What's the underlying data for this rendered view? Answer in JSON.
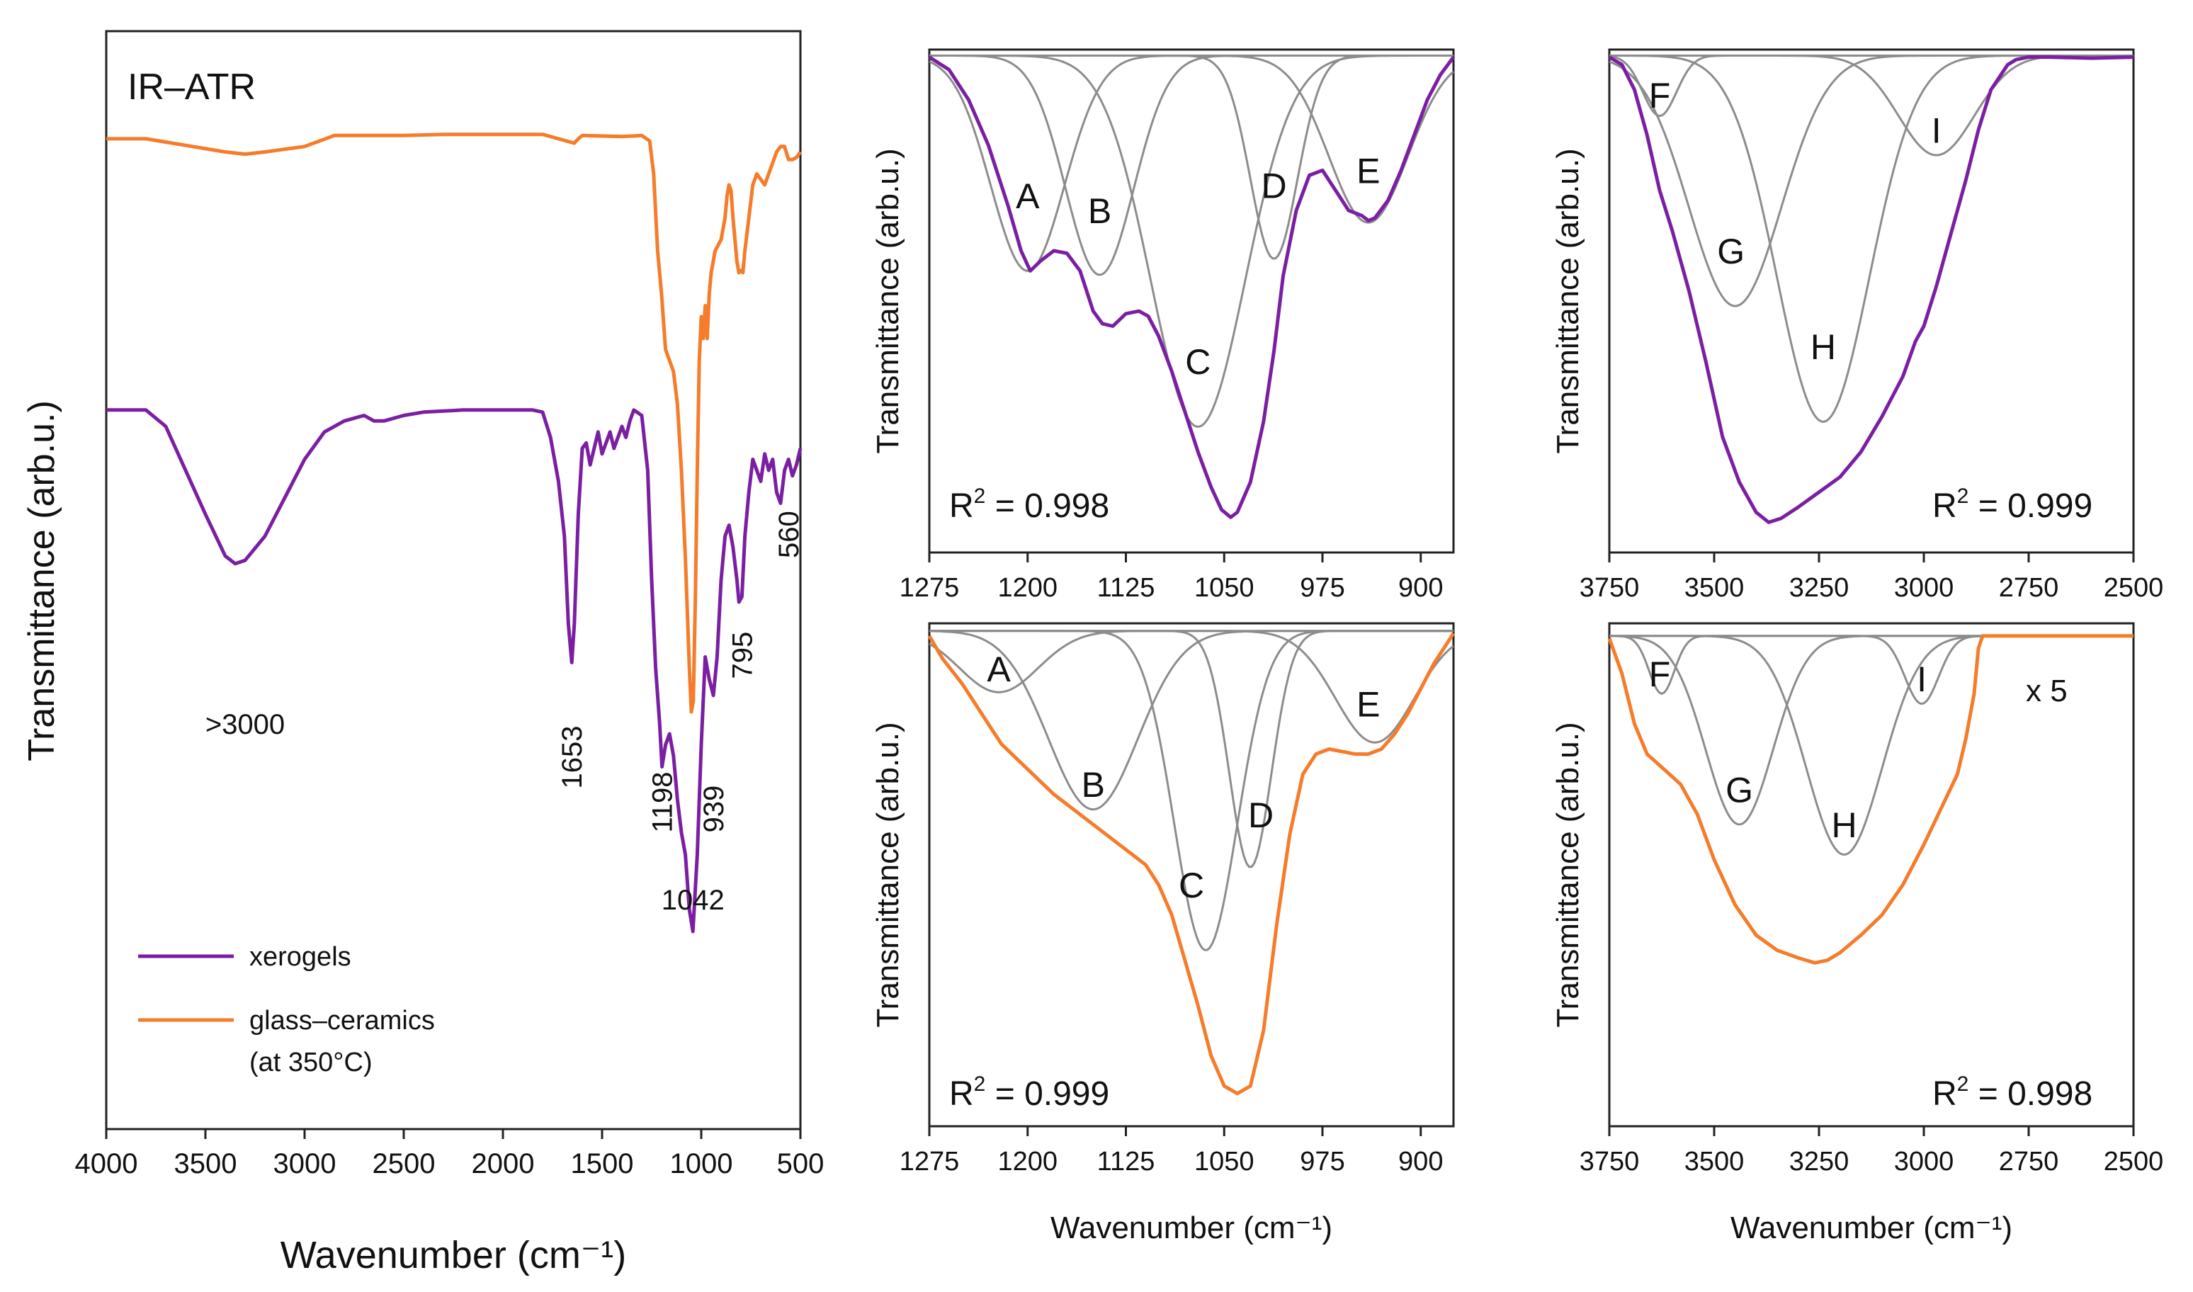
{
  "figure": {
    "colors": {
      "xerogels": "#7b1fa2",
      "glass_ceramics": "#f57c2a",
      "component": "#8c8c8c"
    }
  },
  "chart_data": [
    {
      "id": "survey",
      "type": "line",
      "title": "IR–ATR",
      "xlabel": "Wavenumber (cm⁻¹)",
      "ylabel": "Transmittance (arb.u.)",
      "xlim": [
        4000,
        500
      ],
      "ylim": [
        0,
        1
      ],
      "xticks": [
        "4000",
        "3500",
        "3000",
        "2500",
        "2000",
        "1500",
        "1000",
        "500"
      ],
      "legend": {
        "position": "bottom-left",
        "entries": [
          {
            "name": "xerogels",
            "lines": [
              "xerogels"
            ]
          },
          {
            "name": "glass_ceramics",
            "lines": [
              "glass–ceramics",
              "(at 350°C)"
            ]
          }
        ]
      },
      "annotations": [
        {
          "text": ">3000",
          "x": 3300,
          "y": 0.36,
          "rotate": 0
        },
        {
          "text": "1653",
          "x": 1653,
          "y": 0.31,
          "rotate": -90
        },
        {
          "text": "1198",
          "x": 1198,
          "y": 0.27,
          "rotate": -90
        },
        {
          "text": "939",
          "x": 939,
          "y": 0.27,
          "rotate": -90
        },
        {
          "text": "795",
          "x": 795,
          "y": 0.41,
          "rotate": -90
        },
        {
          "text": "560",
          "x": 560,
          "y": 0.52,
          "rotate": -90
        },
        {
          "text": "1042",
          "x": 1042,
          "y": 0.2,
          "rotate": 0
        }
      ],
      "series": [
        {
          "name": "xerogels",
          "x": [
            4000,
            3800,
            3700,
            3600,
            3500,
            3400,
            3350,
            3300,
            3200,
            3100,
            3000,
            2900,
            2800,
            2700,
            2650,
            2600,
            2500,
            2400,
            2200,
            2000,
            1850,
            1800,
            1760,
            1720,
            1690,
            1670,
            1653,
            1640,
            1620,
            1600,
            1580,
            1560,
            1540,
            1520,
            1500,
            1480,
            1460,
            1440,
            1420,
            1400,
            1380,
            1360,
            1340,
            1300,
            1270,
            1250,
            1230,
            1210,
            1198,
            1180,
            1160,
            1140,
            1120,
            1100,
            1080,
            1060,
            1042,
            1020,
            1000,
            980,
            960,
            939,
            920,
            900,
            880,
            860,
            840,
            820,
            810,
            795,
            780,
            760,
            740,
            720,
            700,
            680,
            660,
            640,
            620,
            600,
            580,
            560,
            540,
            520,
            500
          ],
          "y": [
            0.655,
            0.655,
            0.64,
            0.6,
            0.56,
            0.522,
            0.515,
            0.518,
            0.54,
            0.575,
            0.61,
            0.635,
            0.645,
            0.65,
            0.645,
            0.645,
            0.65,
            0.653,
            0.655,
            0.655,
            0.655,
            0.653,
            0.63,
            0.59,
            0.54,
            0.46,
            0.425,
            0.46,
            0.56,
            0.62,
            0.625,
            0.605,
            0.62,
            0.635,
            0.615,
            0.625,
            0.635,
            0.62,
            0.63,
            0.64,
            0.63,
            0.645,
            0.655,
            0.65,
            0.6,
            0.5,
            0.42,
            0.37,
            0.33,
            0.35,
            0.36,
            0.34,
            0.3,
            0.27,
            0.25,
            0.2,
            0.18,
            0.25,
            0.35,
            0.43,
            0.41,
            0.395,
            0.43,
            0.5,
            0.54,
            0.55,
            0.53,
            0.5,
            0.48,
            0.485,
            0.54,
            0.58,
            0.61,
            0.6,
            0.59,
            0.615,
            0.6,
            0.61,
            0.58,
            0.57,
            0.6,
            0.61,
            0.595,
            0.605,
            0.62
          ]
        },
        {
          "name": "glass_ceramics",
          "x": [
            4000,
            3800,
            3600,
            3400,
            3300,
            3200,
            3000,
            2850,
            2700,
            2500,
            2300,
            2000,
            1800,
            1640,
            1620,
            1600,
            1400,
            1300,
            1260,
            1240,
            1220,
            1200,
            1180,
            1160,
            1140,
            1120,
            1100,
            1080,
            1060,
            1050,
            1040,
            1030,
            1020,
            1010,
            1000,
            990,
            980,
            970,
            960,
            950,
            940,
            930,
            900,
            880,
            870,
            860,
            850,
            840,
            830,
            820,
            810,
            800,
            790,
            780,
            760,
            740,
            720,
            700,
            680,
            660,
            640,
            620,
            600,
            580,
            560,
            540,
            520,
            500
          ],
          "y": [
            0.902,
            0.902,
            0.896,
            0.89,
            0.888,
            0.89,
            0.895,
            0.905,
            0.905,
            0.905,
            0.906,
            0.906,
            0.906,
            0.898,
            0.902,
            0.905,
            0.904,
            0.905,
            0.9,
            0.87,
            0.8,
            0.76,
            0.71,
            0.7,
            0.69,
            0.66,
            0.6,
            0.52,
            0.42,
            0.38,
            0.39,
            0.48,
            0.6,
            0.7,
            0.74,
            0.72,
            0.75,
            0.72,
            0.76,
            0.78,
            0.79,
            0.8,
            0.81,
            0.83,
            0.85,
            0.86,
            0.855,
            0.83,
            0.81,
            0.79,
            0.78,
            0.782,
            0.78,
            0.8,
            0.83,
            0.86,
            0.87,
            0.865,
            0.86,
            0.87,
            0.88,
            0.89,
            0.895,
            0.895,
            0.883,
            0.883,
            0.885,
            0.89
          ]
        }
      ]
    },
    {
      "id": "fit-1",
      "type": "line",
      "xlabel": "",
      "ylabel": "Transmittance (arb.u.)",
      "xlim": [
        1275,
        875
      ],
      "ylim": [
        0,
        1
      ],
      "xticks": [
        "1275",
        "1200",
        "1125",
        "1050",
        "975",
        "900"
      ],
      "r2_label": "R",
      "r2_exp": "2",
      "r2_value": " = 0.998",
      "trace_color": "#7b1fa2",
      "baseline": 0.988,
      "components": [
        {
          "label": "A",
          "center": 1200,
          "depth": 0.428,
          "width": 28,
          "lx": 1200,
          "ly": 0.71
        },
        {
          "label": "B",
          "center": 1145,
          "depth": 0.436,
          "width": 26,
          "lx": 1145,
          "ly": 0.68
        },
        {
          "label": "C",
          "center": 1070,
          "depth": 0.738,
          "width": 36,
          "lx": 1070,
          "ly": 0.38
        },
        {
          "label": "D",
          "center": 1012,
          "depth": 0.404,
          "width": 18,
          "lx": 1012,
          "ly": 0.73
        },
        {
          "label": "E",
          "center": 940,
          "depth": 0.332,
          "width": 30,
          "lx": 940,
          "ly": 0.76
        }
      ],
      "trace": {
        "x": [
          1275,
          1260,
          1245,
          1230,
          1215,
          1205,
          1198,
          1190,
          1180,
          1170,
          1160,
          1150,
          1143,
          1135,
          1125,
          1115,
          1108,
          1100,
          1090,
          1080,
          1070,
          1060,
          1052,
          1045,
          1040,
          1030,
          1020,
          1012,
          1005,
          995,
          985,
          975,
          965,
          955,
          945,
          940,
          935,
          925,
          915,
          905,
          895,
          885,
          875
        ],
        "y": [
          0.985,
          0.96,
          0.9,
          0.81,
          0.69,
          0.6,
          0.56,
          0.58,
          0.6,
          0.595,
          0.56,
          0.48,
          0.455,
          0.45,
          0.475,
          0.48,
          0.47,
          0.43,
          0.36,
          0.28,
          0.2,
          0.13,
          0.085,
          0.07,
          0.08,
          0.14,
          0.26,
          0.4,
          0.55,
          0.68,
          0.75,
          0.76,
          0.72,
          0.68,
          0.67,
          0.66,
          0.665,
          0.7,
          0.76,
          0.83,
          0.9,
          0.95,
          0.985
        ]
      }
    },
    {
      "id": "fit-2",
      "type": "line",
      "xlabel": "",
      "ylabel": "Transmittance (arb.u.)",
      "xlim": [
        3750,
        2500
      ],
      "ylim": [
        0,
        1
      ],
      "xticks": [
        "3750",
        "3500",
        "3250",
        "3000",
        "2750",
        "2500"
      ],
      "r2_label": "R",
      "r2_exp": "2",
      "r2_value": " = 0.999",
      "trace_color": "#7b1fa2",
      "baseline": 0.988,
      "components": [
        {
          "label": "F",
          "center": 3630,
          "depth": 0.12,
          "width": 40,
          "lx": 3630,
          "ly": 0.91
        },
        {
          "label": "G",
          "center": 3450,
          "depth": 0.498,
          "width": 110,
          "lx": 3460,
          "ly": 0.6
        },
        {
          "label": "H",
          "center": 3240,
          "depth": 0.728,
          "width": 110,
          "lx": 3240,
          "ly": 0.41
        },
        {
          "label": "I",
          "center": 2970,
          "depth": 0.198,
          "width": 90,
          "lx": 2970,
          "ly": 0.84
        }
      ],
      "trace": {
        "x": [
          3750,
          3720,
          3690,
          3660,
          3630,
          3600,
          3560,
          3520,
          3480,
          3440,
          3400,
          3370,
          3340,
          3300,
          3250,
          3200,
          3150,
          3100,
          3050,
          3020,
          3000,
          2970,
          2940,
          2900,
          2870,
          2840,
          2800,
          2780,
          2750,
          2700,
          2600,
          2500
        ],
        "y": [
          0.985,
          0.97,
          0.92,
          0.83,
          0.72,
          0.64,
          0.52,
          0.38,
          0.23,
          0.14,
          0.08,
          0.06,
          0.068,
          0.09,
          0.12,
          0.15,
          0.2,
          0.27,
          0.35,
          0.42,
          0.45,
          0.53,
          0.62,
          0.74,
          0.84,
          0.92,
          0.97,
          0.98,
          0.985,
          0.985,
          0.983,
          0.985
        ]
      }
    },
    {
      "id": "fit-3",
      "type": "line",
      "xlabel": "Wavenumber (cm⁻¹)",
      "ylabel": "Transmittance (arb.u.)",
      "xlim": [
        1275,
        875
      ],
      "ylim": [
        0,
        1
      ],
      "xticks": [
        "1275",
        "1200",
        "1125",
        "1050",
        "975",
        "900"
      ],
      "r2_label": "R",
      "r2_exp": "2",
      "r2_value": " = 0.999",
      "trace_color": "#f57c2a",
      "baseline": 0.985,
      "components": [
        {
          "label": "A",
          "center": 1222,
          "depth": 0.122,
          "width": 30,
          "lx": 1222,
          "ly": 0.91
        },
        {
          "label": "B",
          "center": 1150,
          "depth": 0.355,
          "width": 34,
          "lx": 1150,
          "ly": 0.68
        },
        {
          "label": "C",
          "center": 1064,
          "depth": 0.635,
          "width": 24,
          "lx": 1075,
          "ly": 0.48
        },
        {
          "label": "D",
          "center": 1030,
          "depth": 0.47,
          "width": 16,
          "lx": 1022,
          "ly": 0.62
        },
        {
          "label": "E",
          "center": 935,
          "depth": 0.222,
          "width": 30,
          "lx": 940,
          "ly": 0.84
        }
      ],
      "trace": {
        "x": [
          1275,
          1265,
          1250,
          1235,
          1220,
          1200,
          1180,
          1160,
          1140,
          1120,
          1110,
          1100,
          1090,
          1080,
          1070,
          1060,
          1050,
          1040,
          1030,
          1020,
          1010,
          1000,
          990,
          980,
          970,
          960,
          950,
          940,
          930,
          920,
          910,
          900,
          890,
          880,
          875
        ],
        "y": [
          0.975,
          0.93,
          0.88,
          0.82,
          0.76,
          0.71,
          0.66,
          0.62,
          0.58,
          0.54,
          0.52,
          0.48,
          0.42,
          0.33,
          0.24,
          0.14,
          0.08,
          0.065,
          0.08,
          0.19,
          0.4,
          0.58,
          0.7,
          0.74,
          0.75,
          0.745,
          0.74,
          0.74,
          0.75,
          0.78,
          0.82,
          0.87,
          0.92,
          0.96,
          0.98
        ]
      }
    },
    {
      "id": "fit-4",
      "type": "line",
      "xlabel": "Wavenumber (cm⁻¹)",
      "ylabel": "Transmittance (arb.u.)",
      "xlim": [
        3750,
        2500
      ],
      "ylim": [
        0,
        1
      ],
      "xticks": [
        "3750",
        "3500",
        "3250",
        "3000",
        "2750",
        "2500"
      ],
      "r2_label": "R",
      "r2_exp": "2",
      "r2_value": " = 0.998",
      "multiplier": "x 5",
      "trace_color": "#f57c2a",
      "baseline": 0.975,
      "components": [
        {
          "label": "F",
          "center": 3625,
          "depth": 0.115,
          "width": 30,
          "lx": 3630,
          "ly": 0.9
        },
        {
          "label": "G",
          "center": 3440,
          "depth": 0.375,
          "width": 80,
          "lx": 3440,
          "ly": 0.67
        },
        {
          "label": "H",
          "center": 3190,
          "depth": 0.435,
          "width": 90,
          "lx": 3190,
          "ly": 0.6
        },
        {
          "label": "I",
          "center": 3005,
          "depth": 0.135,
          "width": 40,
          "lx": 3005,
          "ly": 0.89
        }
      ],
      "trace": {
        "x": [
          3750,
          3720,
          3690,
          3660,
          3620,
          3580,
          3540,
          3500,
          3450,
          3400,
          3350,
          3300,
          3260,
          3230,
          3200,
          3150,
          3100,
          3050,
          3000,
          2960,
          2920,
          2900,
          2880,
          2870,
          2860,
          2800,
          2700,
          2600,
          2500
        ],
        "y": [
          0.97,
          0.9,
          0.8,
          0.74,
          0.71,
          0.68,
          0.62,
          0.53,
          0.44,
          0.38,
          0.35,
          0.335,
          0.325,
          0.33,
          0.345,
          0.38,
          0.42,
          0.48,
          0.56,
          0.63,
          0.7,
          0.77,
          0.86,
          0.95,
          0.975,
          0.975,
          0.975,
          0.975,
          0.975
        ]
      }
    }
  ]
}
